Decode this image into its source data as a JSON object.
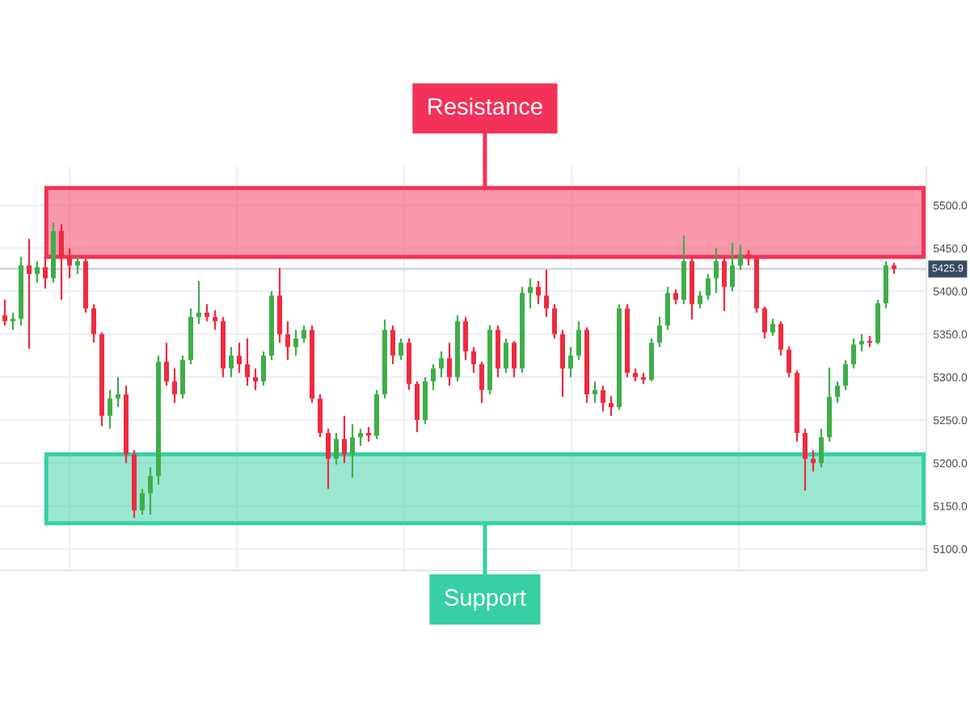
{
  "chart_data": {
    "type": "candlestick",
    "categories": [
      null,
      null,
      null,
      null,
      null,
      null,
      null,
      null,
      null,
      null,
      null,
      null,
      null,
      null,
      null,
      null,
      null,
      null,
      null,
      null,
      null,
      null,
      null,
      null,
      null,
      null,
      null,
      null,
      null,
      null,
      null,
      null,
      null,
      null,
      null,
      null,
      null,
      null,
      null,
      null,
      null,
      null,
      null,
      null,
      null,
      null,
      null,
      null,
      null,
      null,
      null,
      null,
      null,
      null,
      null,
      null,
      null,
      null,
      null,
      null,
      null,
      null,
      null,
      null,
      null,
      null,
      null,
      null,
      null,
      null,
      null,
      null,
      null,
      null,
      null,
      null,
      null,
      null,
      null,
      null,
      null,
      null,
      null,
      null,
      null,
      null,
      null,
      null,
      null,
      null,
      null,
      null,
      null,
      null,
      null,
      null,
      null,
      null,
      null,
      null,
      null,
      null,
      null,
      null,
      null,
      null,
      null,
      null,
      null,
      null,
      null
    ],
    "ohlc": [
      [
        5372,
        5390,
        5360,
        5365
      ],
      [
        5365,
        5375,
        5355,
        5368
      ],
      [
        5368,
        5440,
        5360,
        5430
      ],
      [
        5430,
        5461,
        5333,
        5420
      ],
      [
        5420,
        5435,
        5410,
        5428
      ],
      [
        5428,
        5440,
        5403,
        5415
      ],
      [
        5415,
        5480,
        5410,
        5470
      ],
      [
        5470,
        5478,
        5390,
        5440
      ],
      [
        5440,
        5450,
        5415,
        5430
      ],
      [
        5430,
        5440,
        5420,
        5435
      ],
      [
        5435,
        5438,
        5375,
        5380
      ],
      [
        5380,
        5385,
        5340,
        5350
      ],
      [
        5350,
        5352,
        5243,
        5255
      ],
      [
        5255,
        5285,
        5240,
        5275
      ],
      [
        5275,
        5300,
        5265,
        5280
      ],
      [
        5280,
        5290,
        5200,
        5210
      ],
      [
        5210,
        5215,
        5136,
        5145
      ],
      [
        5145,
        5170,
        5140,
        5165
      ],
      [
        5165,
        5195,
        5140,
        5185
      ],
      [
        5185,
        5325,
        5175,
        5318
      ],
      [
        5318,
        5340,
        5290,
        5295
      ],
      [
        5295,
        5310,
        5270,
        5280
      ],
      [
        5280,
        5325,
        5275,
        5320
      ],
      [
        5320,
        5380,
        5315,
        5370
      ],
      [
        5370,
        5412,
        5362,
        5375
      ],
      [
        5375,
        5385,
        5365,
        5370
      ],
      [
        5370,
        5378,
        5355,
        5365
      ],
      [
        5365,
        5370,
        5300,
        5310
      ],
      [
        5310,
        5335,
        5300,
        5325
      ],
      [
        5325,
        5340,
        5305,
        5315
      ],
      [
        5315,
        5345,
        5290,
        5300
      ],
      [
        5300,
        5310,
        5285,
        5295
      ],
      [
        5295,
        5330,
        5290,
        5325
      ],
      [
        5325,
        5400,
        5320,
        5395
      ],
      [
        5395,
        5427,
        5340,
        5350
      ],
      [
        5350,
        5365,
        5320,
        5335
      ],
      [
        5335,
        5355,
        5325,
        5345
      ],
      [
        5345,
        5360,
        5340,
        5355
      ],
      [
        5355,
        5360,
        5270,
        5275
      ],
      [
        5275,
        5280,
        5230,
        5235
      ],
      [
        5235,
        5240,
        5170,
        5205
      ],
      [
        5205,
        5235,
        5198,
        5228
      ],
      [
        5228,
        5255,
        5200,
        5210
      ],
      [
        5210,
        5245,
        5183,
        5230
      ],
      [
        5230,
        5240,
        5220,
        5235
      ],
      [
        5235,
        5242,
        5225,
        5232
      ],
      [
        5232,
        5285,
        5228,
        5280
      ],
      [
        5280,
        5367,
        5275,
        5355
      ],
      [
        5355,
        5360,
        5315,
        5325
      ],
      [
        5325,
        5345,
        5320,
        5340
      ],
      [
        5340,
        5345,
        5285,
        5292
      ],
      [
        5292,
        5295,
        5236,
        5250
      ],
      [
        5250,
        5300,
        5245,
        5295
      ],
      [
        5295,
        5315,
        5285,
        5310
      ],
      [
        5310,
        5330,
        5300,
        5322
      ],
      [
        5322,
        5340,
        5290,
        5300
      ],
      [
        5300,
        5372,
        5295,
        5365
      ],
      [
        5365,
        5370,
        5320,
        5330
      ],
      [
        5330,
        5335,
        5305,
        5315
      ],
      [
        5315,
        5318,
        5270,
        5285
      ],
      [
        5285,
        5360,
        5280,
        5355
      ],
      [
        5355,
        5360,
        5300,
        5310
      ],
      [
        5310,
        5345,
        5305,
        5340
      ],
      [
        5340,
        5342,
        5300,
        5310
      ],
      [
        5310,
        5405,
        5305,
        5398
      ],
      [
        5398,
        5415,
        5380,
        5405
      ],
      [
        5405,
        5412,
        5385,
        5395
      ],
      [
        5395,
        5425,
        5370,
        5380
      ],
      [
        5380,
        5385,
        5345,
        5350
      ],
      [
        5350,
        5355,
        5277,
        5310
      ],
      [
        5310,
        5335,
        5300,
        5325
      ],
      [
        5325,
        5365,
        5320,
        5355
      ],
      [
        5355,
        5358,
        5270,
        5280
      ],
      [
        5280,
        5295,
        5270,
        5285
      ],
      [
        5285,
        5290,
        5260,
        5270
      ],
      [
        5270,
        5278,
        5255,
        5265
      ],
      [
        5265,
        5385,
        5262,
        5380
      ],
      [
        5380,
        5385,
        5300,
        5305
      ],
      [
        5305,
        5310,
        5295,
        5300
      ],
      [
        5300,
        5305,
        5292,
        5297
      ],
      [
        5297,
        5345,
        5295,
        5340
      ],
      [
        5340,
        5370,
        5335,
        5360
      ],
      [
        5360,
        5405,
        5355,
        5398
      ],
      [
        5398,
        5402,
        5385,
        5390
      ],
      [
        5390,
        5465,
        5385,
        5435
      ],
      [
        5435,
        5440,
        5367,
        5385
      ],
      [
        5385,
        5400,
        5380,
        5395
      ],
      [
        5395,
        5420,
        5390,
        5415
      ],
      [
        5415,
        5450,
        5398,
        5435
      ],
      [
        5435,
        5440,
        5377,
        5405
      ],
      [
        5405,
        5456,
        5400,
        5430
      ],
      [
        5430,
        5454,
        5425,
        5443
      ],
      [
        5443,
        5448,
        5430,
        5438
      ],
      [
        5438,
        5442,
        5375,
        5380
      ],
      [
        5380,
        5382,
        5345,
        5352
      ],
      [
        5352,
        5368,
        5348,
        5362
      ],
      [
        5362,
        5365,
        5325,
        5332
      ],
      [
        5332,
        5336,
        5300,
        5305
      ],
      [
        5305,
        5308,
        5225,
        5235
      ],
      [
        5235,
        5240,
        5168,
        5205
      ],
      [
        5205,
        5215,
        5190,
        5200
      ],
      [
        5200,
        5240,
        5195,
        5230
      ],
      [
        5230,
        5311,
        5225,
        5277
      ],
      [
        5277,
        5295,
        5270,
        5290
      ],
      [
        5290,
        5320,
        5285,
        5315
      ],
      [
        5315,
        5345,
        5310,
        5338
      ],
      [
        5338,
        5350,
        5330,
        5342
      ],
      [
        5342,
        5348,
        5335,
        5340
      ],
      [
        5340,
        5390,
        5338,
        5386
      ],
      [
        5386,
        5435,
        5380,
        5430
      ],
      [
        5430,
        5433,
        5420,
        5426
      ]
    ],
    "ylim": [
      5075,
      5545
    ],
    "yticks": [
      {
        "value": 5100,
        "label": "5100.0"
      },
      {
        "value": 5150,
        "label": "5150.0"
      },
      {
        "value": 5200,
        "label": "5200.0"
      },
      {
        "value": 5250,
        "label": "5250.0"
      },
      {
        "value": 5300,
        "label": "5300.0"
      },
      {
        "value": 5350,
        "label": "5350.0"
      },
      {
        "value": 5400,
        "label": "5400.0"
      },
      {
        "value": 5450,
        "label": "5450.0"
      },
      {
        "value": 5500,
        "label": "5500.0"
      }
    ],
    "grid": true,
    "tick_labels": "y",
    "bands": [
      {
        "axis": "y",
        "from": 5440,
        "to": 5520,
        "label": "Resistance",
        "color": "#f43158"
      },
      {
        "axis": "y",
        "from": 5130,
        "to": 5210,
        "label": "Support",
        "color": "#38cfa5"
      }
    ],
    "ref_lines": [
      {
        "axis": "y",
        "value": 5425.9,
        "label": "5425.9",
        "color": "#d1d4dc"
      }
    ]
  }
}
